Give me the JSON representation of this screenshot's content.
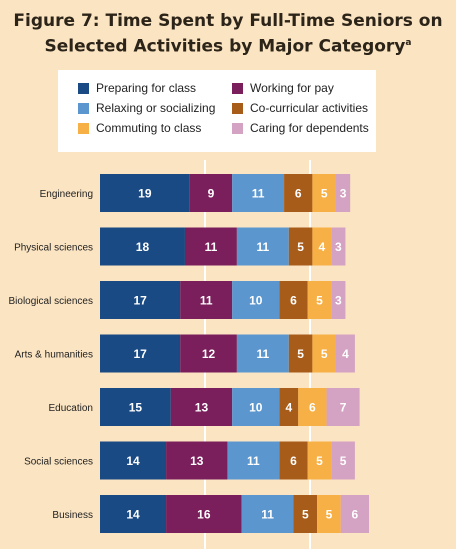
{
  "chart_data": {
    "type": "bar",
    "orientation": "horizontal",
    "stacked": true,
    "title": "Figure 7: Time Spent by Full-Time Seniors on Selected Activities by Major Category",
    "title_superscript": "a",
    "categories": [
      "Engineering",
      "Physical sciences",
      "Biological sciences",
      "Arts & humanities",
      "Education",
      "Social sciences",
      "Business"
    ],
    "series": [
      {
        "name": "Preparing for class",
        "color": "#1a4a84",
        "values": [
          19,
          18,
          17,
          17,
          15,
          14,
          14
        ]
      },
      {
        "name": "Working for pay",
        "color": "#7a1e5c",
        "values": [
          9,
          11,
          11,
          12,
          13,
          13,
          16
        ]
      },
      {
        "name": "Relaxing or socializing",
        "color": "#5b96cf",
        "values": [
          11,
          11,
          10,
          11,
          10,
          11,
          11
        ]
      },
      {
        "name": "Co-curricular activities",
        "color": "#a85c1a",
        "values": [
          6,
          5,
          6,
          5,
          4,
          6,
          5
        ]
      },
      {
        "name": "Commuting to class",
        "color": "#f7b045",
        "values": [
          5,
          4,
          5,
          5,
          6,
          5,
          5
        ]
      },
      {
        "name": "Caring for dependents",
        "color": "#d4a2c2",
        "values": [
          3,
          3,
          3,
          4,
          7,
          5,
          6
        ]
      }
    ],
    "legend_position": "top",
    "grid": true
  }
}
